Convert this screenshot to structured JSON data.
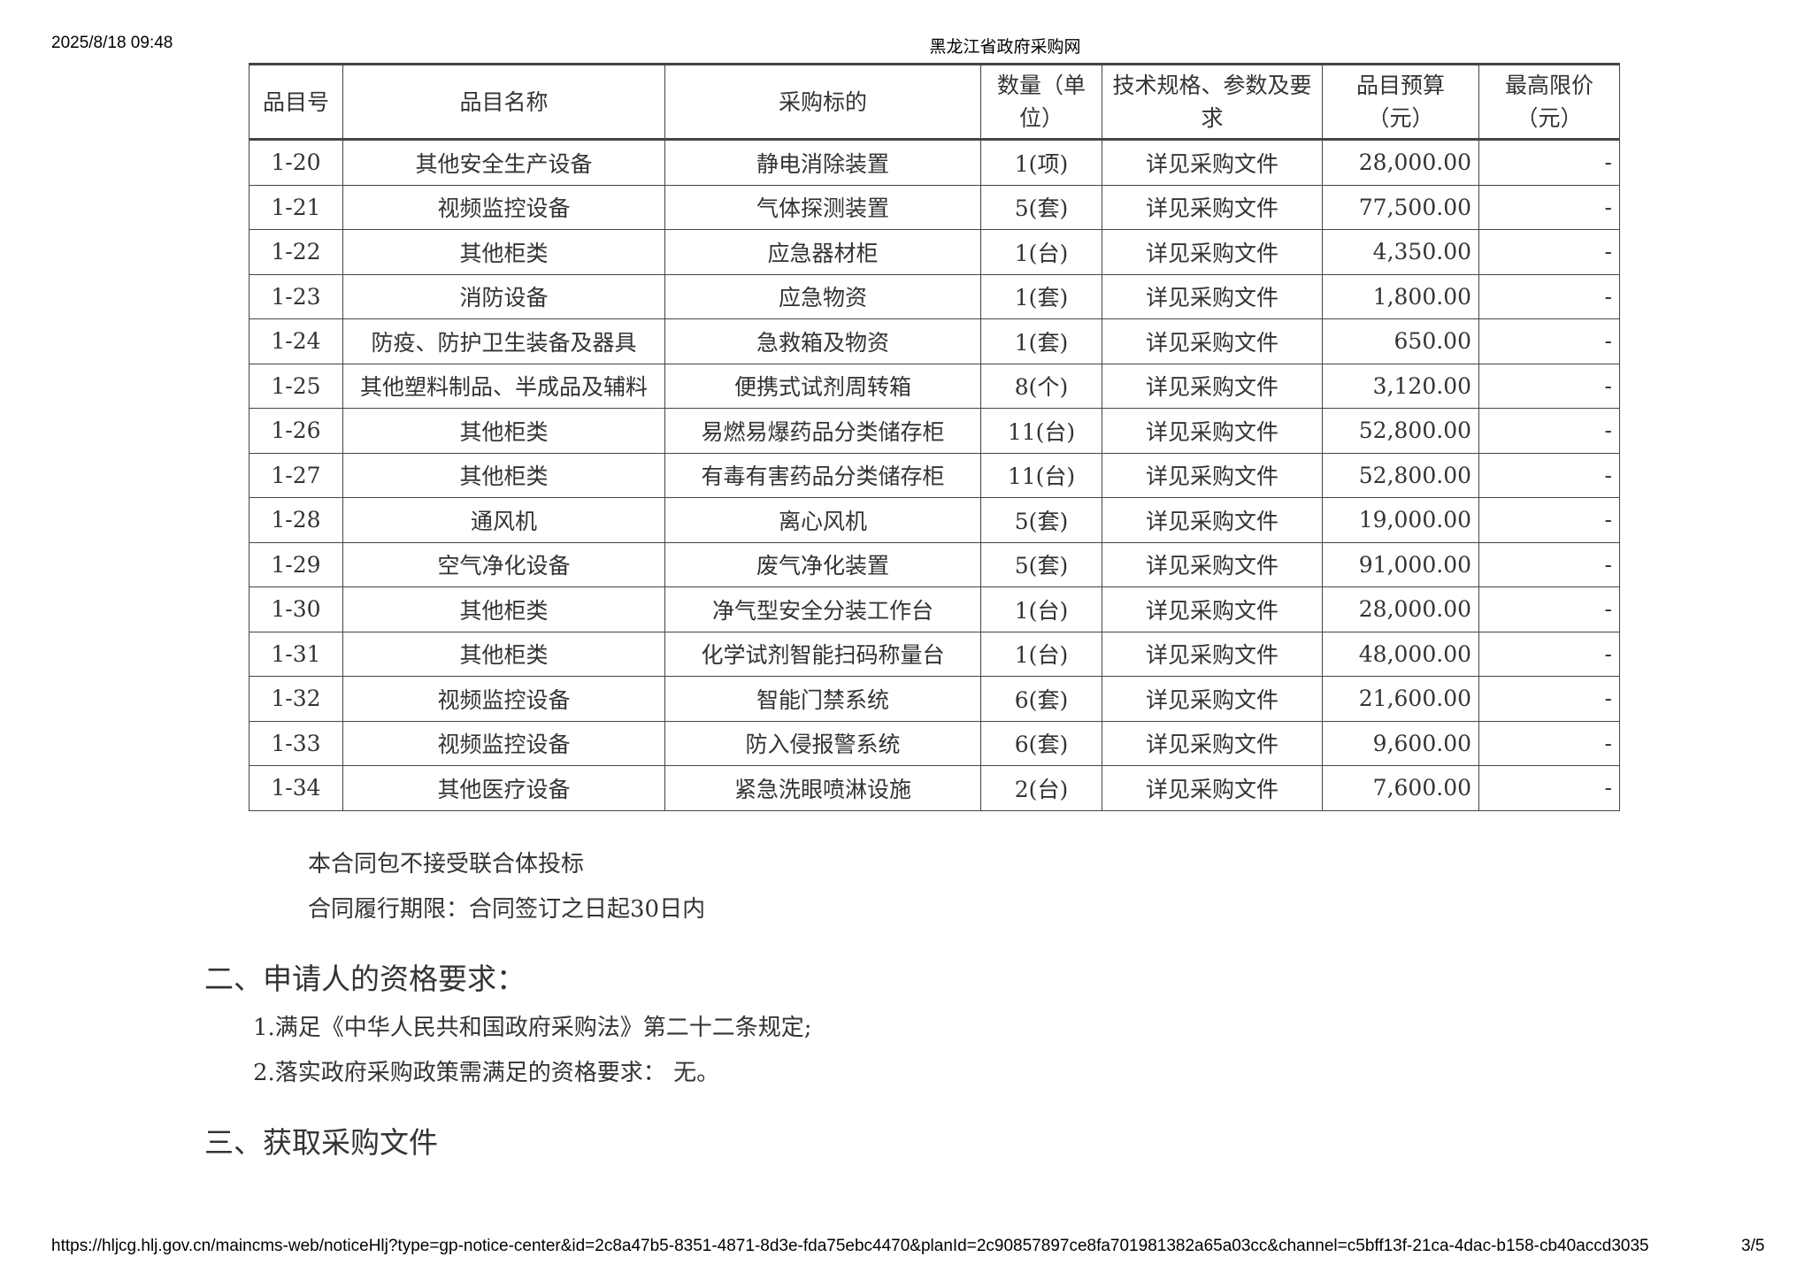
{
  "header": {
    "datetime": "2025/8/18 09:48",
    "site_title": "黑龙江省政府采购网"
  },
  "table": {
    "columns": [
      "品目号",
      "品目名称",
      "采购标的",
      "数量（单位）",
      "技术规格、参数及要求",
      "品目预算（元）",
      "最高限价（元）"
    ],
    "rows": [
      [
        "1-20",
        "其他安全生产设备",
        "静电消除装置",
        "1(项)",
        "详见采购文件",
        "28,000.00",
        "-"
      ],
      [
        "1-21",
        "视频监控设备",
        "气体探测装置",
        "5(套)",
        "详见采购文件",
        "77,500.00",
        "-"
      ],
      [
        "1-22",
        "其他柜类",
        "应急器材柜",
        "1(台)",
        "详见采购文件",
        "4,350.00",
        "-"
      ],
      [
        "1-23",
        "消防设备",
        "应急物资",
        "1(套)",
        "详见采购文件",
        "1,800.00",
        "-"
      ],
      [
        "1-24",
        "防疫、防护卫生装备及器具",
        "急救箱及物资",
        "1(套)",
        "详见采购文件",
        "650.00",
        "-"
      ],
      [
        "1-25",
        "其他塑料制品、半成品及辅料",
        "便携式试剂周转箱",
        "8(个)",
        "详见采购文件",
        "3,120.00",
        "-"
      ],
      [
        "1-26",
        "其他柜类",
        "易燃易爆药品分类储存柜",
        "11(台)",
        "详见采购文件",
        "52,800.00",
        "-"
      ],
      [
        "1-27",
        "其他柜类",
        "有毒有害药品分类储存柜",
        "11(台)",
        "详见采购文件",
        "52,800.00",
        "-"
      ],
      [
        "1-28",
        "通风机",
        "离心风机",
        "5(套)",
        "详见采购文件",
        "19,000.00",
        "-"
      ],
      [
        "1-29",
        "空气净化设备",
        "废气净化装置",
        "5(套)",
        "详见采购文件",
        "91,000.00",
        "-"
      ],
      [
        "1-30",
        "其他柜类",
        "净气型安全分装工作台",
        "1(台)",
        "详见采购文件",
        "28,000.00",
        "-"
      ],
      [
        "1-31",
        "其他柜类",
        "化学试剂智能扫码称量台",
        "1(台)",
        "详见采购文件",
        "48,000.00",
        "-"
      ],
      [
        "1-32",
        "视频监控设备",
        "智能门禁系统",
        "6(套)",
        "详见采购文件",
        "21,600.00",
        "-"
      ],
      [
        "1-33",
        "视频监控设备",
        "防入侵报警系统",
        "6(套)",
        "详见采购文件",
        "9,600.00",
        "-"
      ],
      [
        "1-34",
        "其他医疗设备",
        "紧急洗眼喷淋设施",
        "2(台)",
        "详见采购文件",
        "7,600.00",
        "-"
      ]
    ]
  },
  "body": {
    "note1": "本合同包不接受联合体投标",
    "note2": "合同履行期限：合同签订之日起30日内",
    "section2": "二、申请人的资格要求：",
    "req1": "1.满足《中华人民共和国政府采购法》第二十二条规定;",
    "req2": "2.落实政府采购政策需满足的资格要求： 无。",
    "section3": "三、获取采购文件"
  },
  "footer": {
    "url": "https://hljcg.hlj.gov.cn/maincms-web/noticeHlj?type=gp-notice-center&id=2c8a47b5-8351-4871-8d3e-fda75ebc4470&planId=2c90857897ce8fa701981382a65a03cc&channel=c5bff13f-21ca-4dac-b158-cb40accd3035",
    "page": "3/5"
  }
}
